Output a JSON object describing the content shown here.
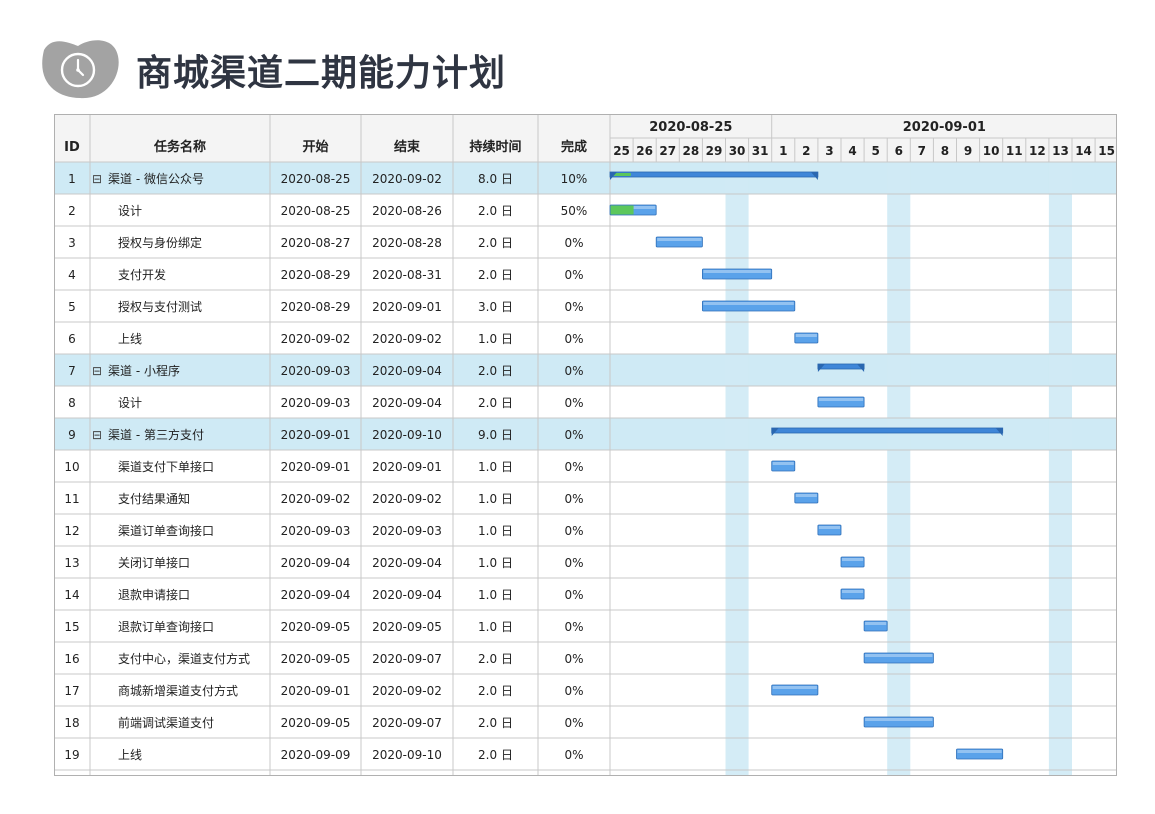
{
  "page": {
    "title": "商城渠道二期能力计划",
    "logo": "clock-icon"
  },
  "colors": {
    "summary_row": "#cfeaf5",
    "header_bg": "#f4f4f4",
    "weekend": "#cfeaf5",
    "bar": "#5aa2ea",
    "progress": "#5cc75c",
    "grid": "#c8c8c8"
  },
  "chart_data": {
    "type": "table",
    "columns": [
      "ID",
      "任务名称",
      "开始",
      "结束",
      "持续时间",
      "完成"
    ],
    "timeline": {
      "weeks": [
        {
          "label": "2020-08-25"
        },
        {
          "label": "2020-09-01"
        }
      ],
      "days": [
        "25",
        "26",
        "27",
        "28",
        "29",
        "30",
        "31",
        "1",
        "2",
        "3",
        "4",
        "5",
        "6",
        "7",
        "8",
        "9",
        "10",
        "11",
        "12",
        "13",
        "14",
        "15"
      ],
      "range": [
        "2020-08-25",
        "2020-09-15"
      ],
      "weekend_days": [
        "30",
        "6",
        "13"
      ]
    },
    "tasks": [
      {
        "id": "1",
        "name": "渠道 - 微信公众号",
        "start": "2020-08-25",
        "end": "2020-09-02",
        "duration": "8.0 日",
        "complete": "10%",
        "summary": true,
        "collapse": "⊟"
      },
      {
        "id": "2",
        "name": "设计",
        "start": "2020-08-25",
        "end": "2020-08-26",
        "duration": "2.0 日",
        "complete": "50%",
        "summary": false
      },
      {
        "id": "3",
        "name": "授权与身份绑定",
        "start": "2020-08-27",
        "end": "2020-08-28",
        "duration": "2.0 日",
        "complete": "0%",
        "summary": false
      },
      {
        "id": "4",
        "name": "支付开发",
        "start": "2020-08-29",
        "end": "2020-08-31",
        "duration": "2.0 日",
        "complete": "0%",
        "summary": false
      },
      {
        "id": "5",
        "name": "授权与支付测试",
        "start": "2020-08-29",
        "end": "2020-09-01",
        "duration": "3.0 日",
        "complete": "0%",
        "summary": false
      },
      {
        "id": "6",
        "name": "上线",
        "start": "2020-09-02",
        "end": "2020-09-02",
        "duration": "1.0 日",
        "complete": "0%",
        "summary": false
      },
      {
        "id": "7",
        "name": "渠道 - 小程序",
        "start": "2020-09-03",
        "end": "2020-09-04",
        "duration": "2.0 日",
        "complete": "0%",
        "summary": true,
        "collapse": "⊟"
      },
      {
        "id": "8",
        "name": "设计",
        "start": "2020-09-03",
        "end": "2020-09-04",
        "duration": "2.0 日",
        "complete": "0%",
        "summary": false
      },
      {
        "id": "9",
        "name": "渠道 - 第三方支付",
        "start": "2020-09-01",
        "end": "2020-09-10",
        "duration": "9.0 日",
        "complete": "0%",
        "summary": true,
        "collapse": "⊟"
      },
      {
        "id": "10",
        "name": "渠道支付下单接口",
        "start": "2020-09-01",
        "end": "2020-09-01",
        "duration": "1.0 日",
        "complete": "0%",
        "summary": false
      },
      {
        "id": "11",
        "name": " 支付结果通知",
        "start": "2020-09-02",
        "end": "2020-09-02",
        "duration": "1.0 日",
        "complete": "0%",
        "summary": false
      },
      {
        "id": "12",
        "name": "渠道订单查询接口",
        "start": "2020-09-03",
        "end": "2020-09-03",
        "duration": "1.0 日",
        "complete": "0%",
        "summary": false
      },
      {
        "id": "13",
        "name": "关闭订单接口",
        "start": "2020-09-04",
        "end": "2020-09-04",
        "duration": "1.0 日",
        "complete": "0%",
        "summary": false
      },
      {
        "id": "14",
        "name": "退款申请接口",
        "start": "2020-09-04",
        "end": "2020-09-04",
        "duration": "1.0 日",
        "complete": "0%",
        "summary": false
      },
      {
        "id": "15",
        "name": "退款订单查询接口",
        "start": "2020-09-05",
        "end": "2020-09-05",
        "duration": "1.0 日",
        "complete": "0%",
        "summary": false
      },
      {
        "id": "16",
        "name": "支付中心，渠道支付方式",
        "start": "2020-09-05",
        "end": "2020-09-07",
        "duration": "2.0 日",
        "complete": "0%",
        "summary": false
      },
      {
        "id": "17",
        "name": "商城新增渠道支付方式",
        "start": "2020-09-01",
        "end": "2020-09-02",
        "duration": "2.0 日",
        "complete": "0%",
        "summary": false
      },
      {
        "id": "18",
        "name": "前端调试渠道支付",
        "start": "2020-09-05",
        "end": "2020-09-07",
        "duration": "2.0 日",
        "complete": "0%",
        "summary": false
      },
      {
        "id": "19",
        "name": "上线",
        "start": "2020-09-09",
        "end": "2020-09-10",
        "duration": "2.0 日",
        "complete": "0%",
        "summary": false
      }
    ]
  }
}
